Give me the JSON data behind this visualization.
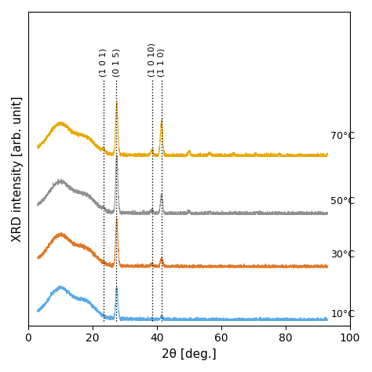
{
  "xlabel": "2θ [deg.]",
  "ylabel": "XRD intensity [arb. unit]",
  "xlim": [
    0,
    100
  ],
  "dashed_lines": [
    23.5,
    27.5,
    38.5,
    41.5
  ],
  "dashed_labels": [
    "(1 0 1)",
    "(0 1 5)",
    "(1 0 10)",
    "(1 1 0)"
  ],
  "temperatures": [
    "10°C",
    "30°C",
    "50°C",
    "70°C"
  ],
  "colors": [
    "#5aaae8",
    "#e07828",
    "#909090",
    "#e8a800"
  ],
  "offsets": [
    0.0,
    0.22,
    0.44,
    0.68
  ],
  "scale": 0.18,
  "background_color": "#ffffff",
  "tick_fontsize": 10,
  "label_fontsize": 11,
  "annotation_fontsize": 8
}
